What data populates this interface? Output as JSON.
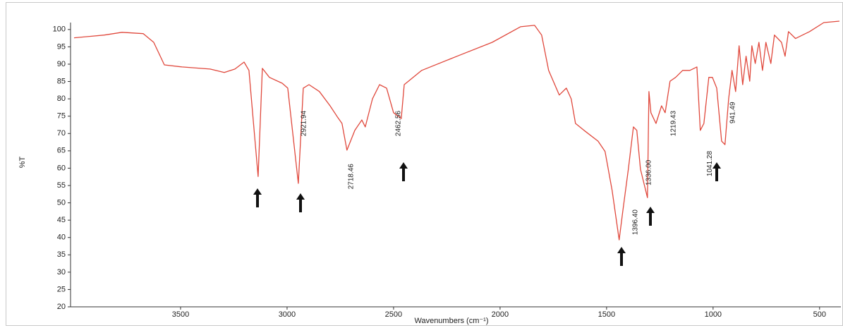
{
  "chart_data": {
    "type": "line",
    "x_label": "Wavenumbers (cm⁻¹)",
    "y_label": "%T",
    "color": "#e0483c",
    "xlim": [
      4000,
      400
    ],
    "ylim": [
      20,
      102
    ],
    "xticks": [
      3500,
      3000,
      2500,
      2000,
      1500,
      1000,
      500
    ],
    "yticks": [
      20,
      25,
      30,
      35,
      40,
      45,
      50,
      55,
      60,
      65,
      70,
      75,
      80,
      85,
      90,
      95,
      100
    ],
    "grid": false,
    "x": [
      4000,
      3858,
      3775,
      3675,
      3626,
      3576,
      3493,
      3361,
      3295,
      3245,
      3202,
      3179,
      3156,
      3136,
      3116,
      3083,
      3023,
      2997,
      2947,
      2924,
      2897,
      2848,
      2798,
      2765,
      2742,
      2719,
      2682,
      2649,
      2633,
      2599,
      2566,
      2533,
      2500,
      2464,
      2450,
      2368,
      2202,
      2037,
      1904,
      1838,
      1805,
      1772,
      1722,
      1689,
      1666,
      1646,
      1606,
      1540,
      1507,
      1474,
      1441,
      1424,
      1398,
      1374,
      1358,
      1341,
      1308,
      1301,
      1292,
      1268,
      1242,
      1225,
      1202,
      1176,
      1143,
      1109,
      1076,
      1060,
      1043,
      1020,
      1003,
      983,
      960,
      944,
      927,
      911,
      894,
      878,
      861,
      845,
      828,
      818,
      802,
      785,
      768,
      752,
      729,
      712,
      679,
      662,
      646,
      613,
      547,
      480,
      407
    ],
    "values": [
      97.6,
      98.4,
      99.2,
      98.8,
      96.3,
      89.8,
      89.2,
      88.6,
      87.6,
      88.6,
      90.6,
      88.2,
      71.9,
      57.6,
      88.8,
      86.2,
      84.5,
      83.1,
      55.6,
      83.1,
      84.1,
      82.1,
      78.0,
      74.9,
      72.9,
      65.2,
      70.9,
      73.9,
      71.9,
      80.0,
      84.1,
      83.1,
      76.0,
      74.3,
      84.1,
      88.2,
      92.3,
      96.3,
      100.8,
      101.2,
      98.4,
      88.2,
      81.1,
      83.1,
      80.0,
      72.9,
      70.9,
      67.8,
      64.8,
      53.6,
      39.3,
      47.5,
      59.7,
      71.9,
      70.9,
      59.7,
      51.5,
      82.1,
      76.0,
      72.9,
      78.0,
      76.0,
      85.1,
      86.2,
      88.2,
      88.2,
      89.2,
      70.9,
      72.9,
      86.2,
      86.2,
      83.1,
      67.8,
      66.8,
      80.0,
      88.2,
      82.1,
      95.3,
      84.1,
      92.3,
      85.1,
      95.3,
      90.2,
      96.3,
      88.2,
      96.3,
      90.2,
      98.4,
      96.3,
      92.3,
      99.4,
      97.4,
      99.4,
      102.0,
      102.4
    ],
    "annotations": [
      {
        "text": "2921.94",
        "x": 2921,
        "y": 72.9
      },
      {
        "text": "2718.46",
        "x": 2699,
        "y": 57.6
      },
      {
        "text": "2462.56",
        "x": 2477,
        "y": 72.9
      },
      {
        "text": "1396.40",
        "x": 1364,
        "y": 44.4
      },
      {
        "text": "1336.00",
        "x": 1301,
        "y": 58.7
      },
      {
        "text": "1219.43",
        "x": 1186,
        "y": 72.9
      },
      {
        "text": "1041.28",
        "x": 1014,
        "y": 61.3
      },
      {
        "text": "941.49",
        "x": 907,
        "y": 76.0
      }
    ]
  }
}
